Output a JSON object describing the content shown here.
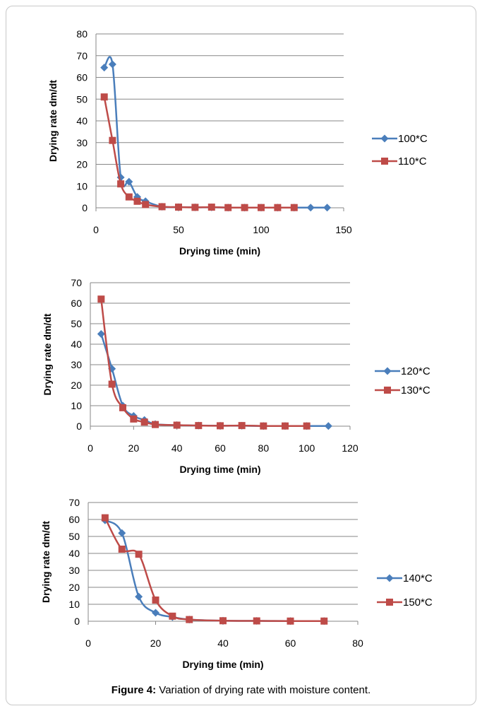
{
  "caption": {
    "label": "Figure 4:",
    "text": " Variation of drying rate with moisture content."
  },
  "colors": {
    "series1": "#4a7ebb",
    "series2": "#be4b48",
    "grid": "#878787",
    "text": "#000000"
  },
  "chart_data": [
    {
      "type": "line",
      "xlabel": "Drying time (min)",
      "ylabel": "Drying rate dm/dt",
      "xlim": [
        0,
        150
      ],
      "xticks": [
        0,
        50,
        100,
        150
      ],
      "ylim": [
        0,
        80
      ],
      "yticks": [
        0,
        10,
        20,
        30,
        40,
        50,
        60,
        70,
        80
      ],
      "grid": "horizontal",
      "legend_position": "right",
      "series": [
        {
          "name": "100*C",
          "marker": "diamond",
          "x": [
            5,
            10,
            15,
            20,
            25,
            30,
            40,
            50,
            60,
            70,
            80,
            90,
            100,
            110,
            120,
            130,
            140
          ],
          "y": [
            64.5,
            66,
            14,
            12,
            5,
            3,
            0.5,
            0.3,
            0.2,
            0.2,
            0.1,
            0.1,
            0.1,
            0.1,
            0.1,
            0.1,
            0.1
          ]
        },
        {
          "name": "110*C",
          "marker": "square",
          "x": [
            5,
            10,
            15,
            20,
            25,
            30,
            40,
            50,
            60,
            70,
            80,
            90,
            100,
            110,
            120
          ],
          "y": [
            51,
            31,
            11,
            5,
            3,
            1.5,
            0.5,
            0.3,
            0.2,
            0.3,
            0.1,
            0.1,
            0.1,
            0.1,
            0.1
          ]
        }
      ]
    },
    {
      "type": "line",
      "xlabel": "Drying time (min)",
      "ylabel": "Drying rate dm/dt",
      "xlim": [
        0,
        120
      ],
      "xticks": [
        0,
        20,
        40,
        60,
        80,
        100,
        120
      ],
      "ylim": [
        0,
        70
      ],
      "yticks": [
        0,
        10,
        20,
        30,
        40,
        50,
        60,
        70
      ],
      "grid": "horizontal",
      "legend_position": "right",
      "series": [
        {
          "name": "120*C",
          "marker": "diamond",
          "x": [
            5,
            10,
            15,
            20,
            25,
            30,
            40,
            50,
            60,
            70,
            80,
            90,
            100,
            110
          ],
          "y": [
            45,
            28,
            10,
            5,
            3,
            1,
            0.5,
            0.3,
            0.2,
            0.2,
            0.1,
            0.1,
            0.1,
            0.1
          ]
        },
        {
          "name": "130*C",
          "marker": "square",
          "x": [
            5,
            10,
            15,
            20,
            25,
            30,
            40,
            50,
            60,
            70,
            80,
            90,
            100
          ],
          "y": [
            62,
            20.5,
            9,
            3.5,
            2,
            0.8,
            0.5,
            0.3,
            0.2,
            0.3,
            0.1,
            0.1,
            0.1
          ]
        }
      ]
    },
    {
      "type": "line",
      "xlabel": "Drying time (min)",
      "ylabel": "Drying rate dm/dt",
      "xlim": [
        0,
        80
      ],
      "xticks": [
        0,
        20,
        40,
        60,
        80
      ],
      "ylim": [
        0,
        70
      ],
      "yticks": [
        0,
        10,
        20,
        30,
        40,
        50,
        60,
        70
      ],
      "grid": "horizontal",
      "legend_position": "right",
      "series": [
        {
          "name": "140*C",
          "marker": "diamond",
          "x": [
            5,
            10,
            15,
            20,
            25,
            30,
            40,
            50,
            60,
            70
          ],
          "y": [
            59.5,
            52,
            14.5,
            5,
            2.5,
            1,
            0.3,
            0.2,
            0.1,
            0.1
          ]
        },
        {
          "name": "150*C",
          "marker": "square",
          "x": [
            5,
            10,
            15,
            20,
            25,
            30,
            40,
            50,
            60,
            70
          ],
          "y": [
            61,
            42.5,
            39.5,
            12.5,
            3,
            1,
            0.3,
            0.2,
            0.1,
            0.1
          ]
        }
      ]
    }
  ]
}
